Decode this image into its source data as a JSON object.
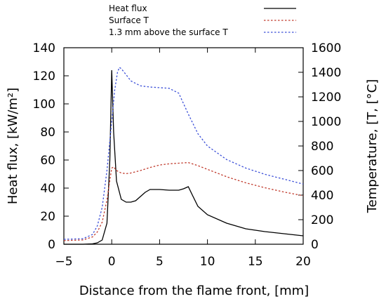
{
  "chart_data": {
    "type": "line",
    "xlabel": "Distance from the flame front, [mm]",
    "ylabel": "Heat flux, [kW/m²]",
    "y2label": "Temperature, [T, [°C]",
    "xlim": [
      -5,
      20
    ],
    "ylim": [
      0,
      140
    ],
    "y2lim": [
      0,
      1600
    ],
    "x_ticks": [
      "−5",
      "0",
      "5",
      "10",
      "15",
      "20"
    ],
    "y_ticks": [
      "0",
      "20",
      "40",
      "60",
      "80",
      "100",
      "120",
      "140"
    ],
    "y2_ticks": [
      "0",
      "200",
      "400",
      "600",
      "800",
      "1000",
      "1200",
      "1400",
      "1600"
    ],
    "grid": false,
    "legend_position": "top-center, outside plot",
    "series": [
      {
        "name": "Heat flux",
        "axis": "left",
        "color": "#000000",
        "dash": "solid",
        "x": [
          -5,
          -3,
          -2,
          -1.5,
          -1,
          -0.5,
          -0.2,
          0,
          0.2,
          0.5,
          1,
          1.5,
          2,
          2.5,
          3,
          3.5,
          4,
          5,
          6,
          7,
          7.5,
          8,
          8.5,
          9,
          10,
          12,
          14,
          16,
          18,
          20
        ],
        "values": [
          0,
          0,
          0.3,
          1,
          3,
          15,
          60,
          124,
          80,
          45,
          32,
          30,
          30,
          31,
          34,
          37,
          39,
          39,
          38.5,
          38.5,
          39.5,
          41,
          34,
          27,
          21,
          15,
          11,
          9,
          7.5,
          6
        ]
      },
      {
        "name": "Surface T",
        "axis": "right",
        "color": "#c0392b",
        "dash": "dotted",
        "x": [
          -5,
          -3,
          -2,
          -1.5,
          -1,
          -0.5,
          -0.2,
          0,
          0.2,
          0.5,
          1,
          1.5,
          2,
          3,
          4,
          5,
          6,
          7,
          8,
          9,
          10,
          12,
          14,
          16,
          18,
          20
        ],
        "values": [
          30,
          35,
          60,
          100,
          180,
          360,
          520,
          620,
          630,
          600,
          580,
          575,
          580,
          600,
          625,
          645,
          655,
          660,
          665,
          640,
          610,
          550,
          500,
          460,
          425,
          395
        ]
      },
      {
        "name": "1.3 mm above the surface T",
        "axis": "right",
        "color": "#3b4fd8",
        "dash": "dotted",
        "x": [
          -5,
          -3,
          -2,
          -1.5,
          -1,
          -0.5,
          0,
          0.3,
          0.6,
          0.8,
          1,
          1.5,
          2,
          3,
          4,
          5,
          6,
          7,
          8,
          9,
          10,
          12,
          14,
          16,
          18,
          20
        ],
        "values": [
          40,
          45,
          80,
          150,
          300,
          600,
          1000,
          1250,
          1400,
          1440,
          1430,
          1380,
          1330,
          1290,
          1280,
          1275,
          1270,
          1230,
          1060,
          900,
          800,
          690,
          620,
          570,
          530,
          490
        ]
      }
    ]
  }
}
